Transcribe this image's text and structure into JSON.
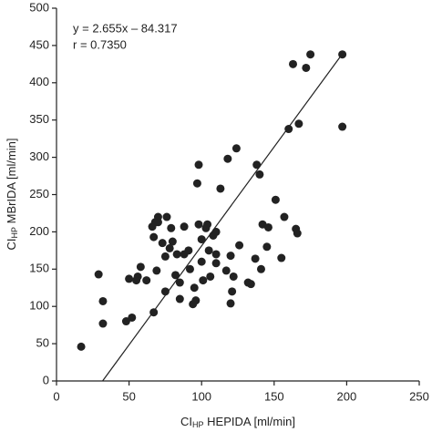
{
  "chart_data": {
    "type": "scatter",
    "annotations": [
      "y = 2.655x – 84.317",
      "r = 0.7350"
    ],
    "fit": {
      "slope": 2.655,
      "intercept": -84.317
    },
    "x_label": {
      "main": "CI",
      "sub": "HP",
      "rest": " HEPIDA [ml/min]"
    },
    "y_label": {
      "main": "CI",
      "sub": "HP",
      "rest": " MBrIDA [ml/min]"
    },
    "color": "#222222",
    "xlim": [
      0,
      250
    ],
    "xticks": [
      0,
      50,
      100,
      150,
      200,
      250
    ],
    "ylim": [
      0,
      500
    ],
    "yticks": [
      0,
      50,
      100,
      150,
      200,
      250,
      300,
      350,
      400,
      450,
      500
    ],
    "grid": false,
    "x": [
      17,
      29,
      32,
      32,
      48,
      52,
      50,
      56,
      58,
      55,
      67,
      62,
      69,
      66,
      67,
      70,
      68,
      73,
      75,
      75,
      78,
      79,
      70,
      76,
      83,
      80,
      82,
      85,
      85,
      88,
      88,
      91,
      92,
      95,
      94,
      97,
      98,
      98,
      100,
      100,
      101,
      103,
      105,
      106,
      108,
      110,
      110,
      104,
      113,
      110,
      117,
      118,
      120,
      122,
      124,
      126,
      121,
      132,
      134,
      137,
      138,
      140,
      141,
      142,
      145,
      146,
      151,
      155,
      157,
      160,
      163,
      165,
      166,
      167,
      172,
      175,
      197,
      197,
      120,
      96
    ],
    "values": [
      46,
      143,
      107,
      77,
      80,
      85,
      137,
      140,
      153,
      135,
      92,
      135,
      148,
      207,
      193,
      213,
      213,
      185,
      167,
      120,
      178,
      205,
      220,
      220,
      170,
      187,
      142,
      132,
      110,
      170,
      207,
      175,
      150,
      125,
      103,
      265,
      290,
      210,
      160,
      190,
      135,
      205,
      175,
      140,
      195,
      158,
      200,
      210,
      258,
      170,
      148,
      298,
      168,
      140,
      312,
      182,
      120,
      132,
      130,
      164,
      290,
      277,
      150,
      210,
      180,
      206,
      243,
      165,
      220,
      338,
      425,
      204,
      198,
      345,
      420,
      438,
      438,
      341,
      104,
      108
    ]
  }
}
